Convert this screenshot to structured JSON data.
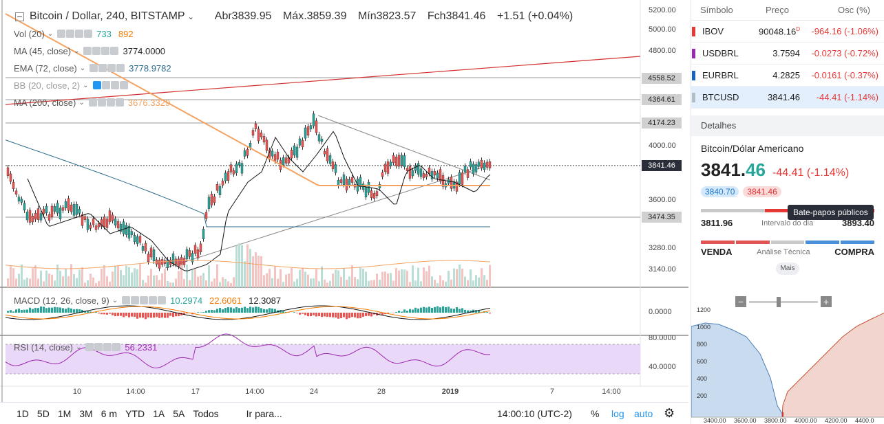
{
  "header": {
    "symbol_title": "Bitcoin / Dollar, 240, BITSTAMP",
    "open": "Abr3839.95",
    "high": "Máx.3859.39",
    "low": "Mín3823.57",
    "close": "Fch3841.46",
    "change": "+1.51 (+0.04%)"
  },
  "indicators": {
    "vol": {
      "label": "Vol (20)",
      "v1": "733",
      "v2": "892"
    },
    "ma45": {
      "label": "MA (45, close)",
      "value": "3774.0000"
    },
    "ema72": {
      "label": "EMA (72, close)",
      "value": "3778.9782"
    },
    "bb": {
      "label": "BB (20, close, 2)"
    },
    "ma200": {
      "label": "MA (200, close)",
      "value": "3676.3329"
    },
    "macd": {
      "label": "MACD (12, 26, close, 9)",
      "v1": "10.2974",
      "v2": "22.6061",
      "v3": "12.3087"
    },
    "rsi": {
      "label": "RSI (14, close)",
      "value": "56.2331"
    }
  },
  "price_axis": {
    "ticks": [
      "5200.00",
      "5000.00",
      "4800.00",
      "4000.00",
      "3600.00",
      "3280.00",
      "3140.00"
    ],
    "boxes": [
      "4558.52",
      "4364.61",
      "4174.23",
      "3474.35"
    ],
    "current": "3841.46",
    "macd_tick": "0.0000",
    "rsi_ticks": [
      "80.0000",
      "40.0000"
    ]
  },
  "time_axis": [
    "10",
    "14:00",
    "17",
    "14:00",
    "24",
    "28",
    "2019",
    "7",
    "14:00"
  ],
  "bottom_bar": {
    "periods": [
      "1D",
      "5D",
      "1M",
      "3M",
      "6 m",
      "YTD",
      "1A",
      "5A",
      "Todos"
    ],
    "goto": "Ir para...",
    "clock": "14:00:10 (UTC-2)",
    "pct": "%",
    "log": "log",
    "auto": "auto"
  },
  "watchlist": {
    "headers": {
      "symbol": "Símbolo",
      "price": "Preço",
      "change": "Osc (%)"
    },
    "rows": [
      {
        "symbol": "IBOV",
        "price": "90048.16",
        "flag": "D",
        "change": "-964.16 (-1.06%)",
        "color": "#e53935"
      },
      {
        "symbol": "USDBRL",
        "price": "3.7594",
        "change": "-0.0273 (-0.72%)",
        "color": "#9c27b0"
      },
      {
        "symbol": "EURBRL",
        "price": "4.2825",
        "change": "-0.0161 (-0.37%)",
        "color": "#1565c0"
      },
      {
        "symbol": "BTCUSD",
        "price": "3841.46",
        "change": "-44.41 (-1.14%)",
        "color": "#b0bec5"
      }
    ]
  },
  "details": {
    "header": "Detalhes",
    "name": "Bitcoin/Dólar Americano",
    "price_main": "3841.",
    "price_hl": "46",
    "change": "-44.41 (-1.14%)",
    "bid": "3840.70",
    "ask": "3841.46",
    "tooltip": "Bate-papos públicos",
    "range_low": "3811.96",
    "range_label": "Intervalo do dia",
    "range_high": "3893.40",
    "range_position": 0.37,
    "ta_sell": "VENDA",
    "ta_label": "Análise Técnica",
    "ta_buy": "COMPRA",
    "more": "Mais"
  },
  "depth": {
    "y_ticks": [
      "1200",
      "1000",
      "800",
      "600",
      "400",
      "200"
    ],
    "x_ticks": [
      "3400.00",
      "3600.00",
      "3800.00",
      "4000.00",
      "4200.00",
      "4400.0"
    ]
  }
}
